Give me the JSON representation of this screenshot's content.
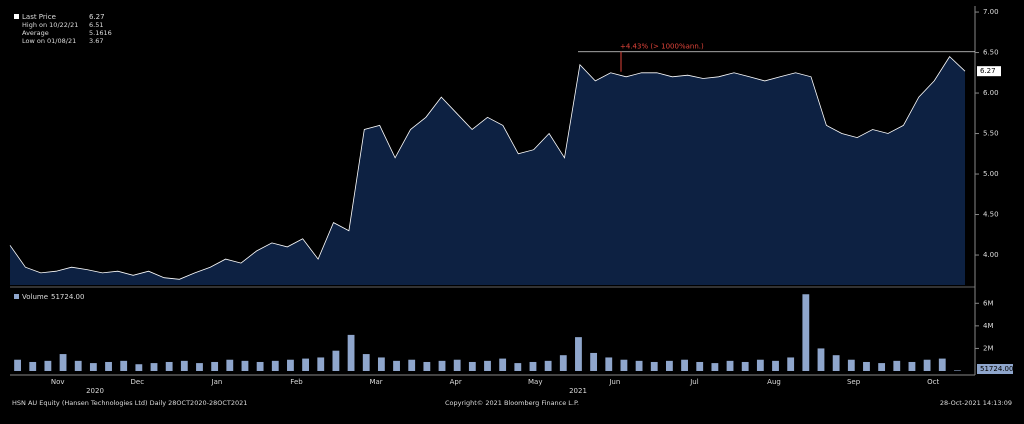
{
  "chart_data": [
    {
      "type": "area",
      "series": [
        {
          "name": "Last Price",
          "color": "#ffffff",
          "fill": "#0d2142",
          "values": [
            4.12,
            3.85,
            3.78,
            3.8,
            3.85,
            3.82,
            3.78,
            3.8,
            3.75,
            3.8,
            3.72,
            3.7,
            3.78,
            3.85,
            3.95,
            3.9,
            4.05,
            4.15,
            4.1,
            4.2,
            3.95,
            4.4,
            4.3,
            5.55,
            5.6,
            5.2,
            5.55,
            5.7,
            5.95,
            5.75,
            5.55,
            5.7,
            5.6,
            5.25,
            5.3,
            5.5,
            5.2,
            6.35,
            6.15,
            6.25,
            6.2,
            6.25,
            6.25,
            6.2,
            6.22,
            6.18,
            6.2,
            6.25,
            6.2,
            6.15,
            6.2,
            6.25,
            6.2,
            5.6,
            5.5,
            5.45,
            5.55,
            5.5,
            5.6,
            5.95,
            6.15,
            6.45,
            6.27
          ]
        }
      ],
      "stats": [
        {
          "label": "High on 10/22/21",
          "value": 6.51
        },
        {
          "label": "Average",
          "value": 5.1616
        },
        {
          "label": "Low on 01/08/21",
          "value": 3.67
        }
      ],
      "annotation": "+4.43% (> 1000%ann.)",
      "ylim": [
        3.63,
        7.05
      ],
      "yticks": [
        {
          "value": 4,
          "label": "4.00"
        },
        {
          "value": 4.5,
          "label": "4.50"
        },
        {
          "value": 5,
          "label": "5.00"
        },
        {
          "value": 5.5,
          "label": "5.50"
        },
        {
          "value": 6,
          "label": "6.00"
        },
        {
          "value": 6.5,
          "label": "6.50"
        },
        {
          "value": 7,
          "label": "7.00"
        }
      ]
    },
    {
      "type": "bar",
      "series": [
        {
          "name": "Volume",
          "color": "#8fa6cc",
          "values": [
            1000000,
            800000,
            900000,
            1500000,
            900000,
            700000,
            800000,
            900000,
            600000,
            700000,
            800000,
            900000,
            700000,
            800000,
            1000000,
            900000,
            800000,
            900000,
            1000000,
            1100000,
            1200000,
            1800000,
            3200000,
            1500000,
            1200000,
            900000,
            1000000,
            800000,
            900000,
            1000000,
            800000,
            900000,
            1100000,
            700000,
            800000,
            900000,
            1400000,
            3000000,
            1600000,
            1200000,
            1000000,
            900000,
            800000,
            900000,
            1000000,
            800000,
            700000,
            900000,
            800000,
            1000000,
            900000,
            1200000,
            6800000,
            2000000,
            1400000,
            1000000,
            800000,
            700000,
            900000,
            800000,
            1000000,
            1100000,
            51724
          ],
          "last": {
            "value": 51724,
            "label": "51724.00"
          }
        }
      ],
      "ylim": [
        0,
        7000000
      ],
      "yticks": [
        {
          "value": 2000000,
          "label": "2M"
        },
        {
          "value": 4000000,
          "label": "4M"
        },
        {
          "value": 6000000,
          "label": "6M"
        }
      ],
      "months": [
        "Nov",
        "Dec",
        "Jan",
        "Feb",
        "Mar",
        "Apr",
        "May",
        "Jun",
        "Jul",
        "Aug",
        "Sep",
        "Oct"
      ],
      "years": [
        "2020",
        "2021"
      ]
    }
  ],
  "footer": {
    "left": "HSN AU Equity (Hansen Technologies Ltd)  Daily 28OCT2020-28OCT2021",
    "center": "Copyright© 2021 Bloomberg Finance L.P.",
    "right": "28-Oct-2021 14:13:09"
  }
}
